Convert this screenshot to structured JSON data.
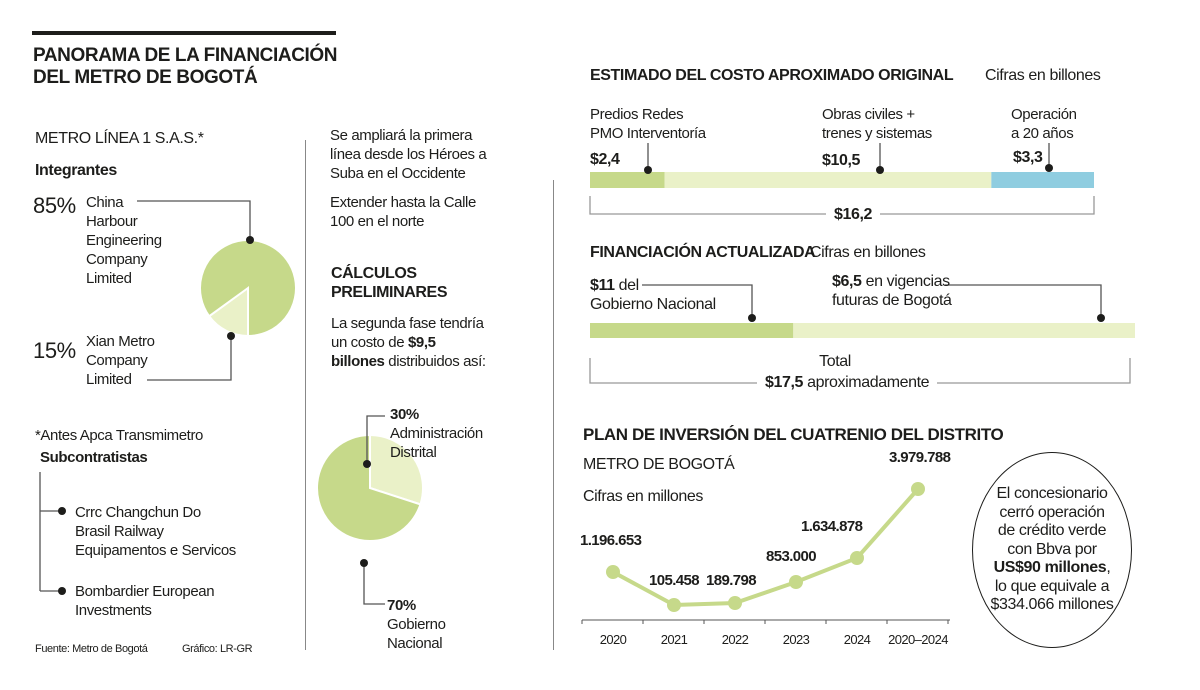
{
  "title": [
    "PANORAMA DE LA FINANCIACIÓN",
    "DEL METRO DE BOGOTÁ"
  ],
  "colors": {
    "green": "#c6d98a",
    "light_green": "#eaf1c8",
    "blue": "#8fcde0"
  },
  "left": {
    "company": "METRO LÍNEA 1 S.A.S.*",
    "members_label": "Integrantes",
    "members": [
      {
        "pct": "85%",
        "name": [
          "China",
          "Harbour",
          "Engineering",
          "Company",
          "Limited"
        ]
      },
      {
        "pct": "15%",
        "name": [
          "Xian Metro",
          "Company",
          "Limited"
        ]
      }
    ],
    "footnote": "*Antes Apca Transmimetro",
    "subcontractors_label": "Subcontratistas",
    "subcontractors": [
      [
        "Crrc Changchun Do",
        "Brasil Railway",
        "Equipamentos e Servicos"
      ],
      [
        "Bombardier European",
        "Investments"
      ]
    ],
    "source": "Fuente: Metro de Bogotá",
    "credit": "Gráfico: LR-GR"
  },
  "middle": {
    "expansion": [
      "Se ampliará la primera",
      "línea desde los Héroes a",
      "Suba en el Occidente"
    ],
    "extend": [
      "Extender hasta la Calle",
      "100 en el norte"
    ],
    "calc_title": [
      "CÁLCULOS",
      "PRELIMINARES"
    ],
    "calc_text": {
      "l1": "La segunda fase tendría",
      "l2a": "un costo de ",
      "l2b": "$9,5",
      "l3a": "billones",
      "l3b": " distribuidos así:"
    },
    "slices": [
      {
        "pct": "30%",
        "label": [
          "Administración",
          "Distrital"
        ]
      },
      {
        "pct": "70%",
        "label": [
          "Gobierno",
          "Nacional"
        ]
      }
    ]
  },
  "cost": {
    "title": "ESTIMADO DEL COSTO APROXIMADO ORIGINAL",
    "unit": "Cifras en billones",
    "items": [
      {
        "label": [
          "Predios Redes",
          "PMO Interventoría"
        ],
        "value": "$2,4"
      },
      {
        "label": [
          "Obras civiles +",
          "trenes y sistemas"
        ],
        "value": "$10,5"
      },
      {
        "label": [
          "Operación",
          "a 20 años"
        ],
        "value": "$3,3"
      }
    ],
    "total": "$16,2"
  },
  "financing": {
    "title": "FINANCIACIÓN ACTUALIZADA",
    "unit": "Cifras en billones",
    "nation": {
      "value": "$11",
      "l1": " del",
      "l2": "Gobierno Nacional"
    },
    "city": {
      "value": "$6,5",
      "l1": " en vigencias",
      "l2": "futuras de Bogotá"
    },
    "total_label": "Total",
    "total_value": "$17,5",
    "total_suffix": " aproximadamente"
  },
  "plan": {
    "title": "PLAN DE INVERSIÓN DEL CUATRENIO DEL DISTRITO",
    "subtitle": "METRO DE BOGOTÁ",
    "unit": "Cifras en millones",
    "note": {
      "l1": "El concesionario",
      "l2": "cerró operación",
      "l3": "de crédito verde",
      "l4": "con Bbva por",
      "l5a": "US$90 millones",
      "l5b": ",",
      "l6": "lo que equivale a",
      "l7": "$334.066 millones"
    }
  },
  "chart_data": [
    {
      "type": "pie",
      "title": "Integrantes",
      "categories": [
        "China Harbour Engineering Company Limited",
        "Xian Metro Company Limited"
      ],
      "values": [
        85,
        15
      ]
    },
    {
      "type": "pie",
      "categories": [
        "Administración Distrital",
        "Gobierno Nacional"
      ],
      "values": [
        30,
        70
      ]
    },
    {
      "type": "bar",
      "title": "ESTIMADO DEL COSTO APROXIMADO ORIGINAL",
      "categories": [
        "Predios Redes PMO Interventoría",
        "Obras civiles + trenes y sistemas",
        "Operación a 20 años"
      ],
      "values": [
        2.4,
        10.5,
        3.3
      ],
      "total": 16.2,
      "stacked": true
    },
    {
      "type": "bar",
      "title": "FINANCIACIÓN ACTUALIZADA",
      "categories": [
        "Gobierno Nacional",
        "Vigencias futuras de Bogotá"
      ],
      "values": [
        11,
        6.5
      ],
      "total": 17.5,
      "stacked": true
    },
    {
      "type": "line",
      "title": "PLAN DE INVERSIÓN DEL CUATRENIO DEL DISTRITO",
      "ylabel": "Cifras en millones",
      "categories": [
        "2020",
        "2021",
        "2022",
        "2023",
        "2024",
        "2020-2024"
      ],
      "values": [
        1196653,
        105458,
        189798,
        853000,
        1634878,
        3979788
      ],
      "labels": [
        "1.196.653",
        "105.458",
        "189.798",
        "853.000",
        "1.634.878",
        "3.979.788"
      ]
    }
  ]
}
